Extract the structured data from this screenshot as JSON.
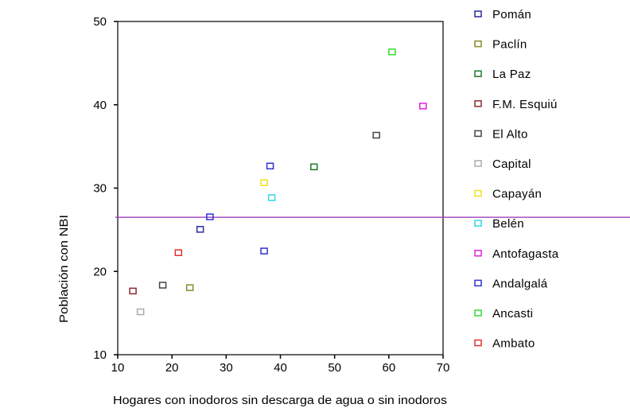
{
  "chart_data": {
    "type": "scatter",
    "title": "",
    "xlabel": "Hogares con inodoros sin descarga de agua o sin inodoros",
    "ylabel": "Población con NBI",
    "xlim": [
      10,
      70
    ],
    "ylim": [
      10,
      50
    ],
    "xticks": [
      "10",
      "20",
      "30",
      "40",
      "50",
      "60",
      "70"
    ],
    "yticks": [
      "10",
      "20",
      "30",
      "40",
      "50"
    ],
    "grid": false,
    "reference_line": {
      "y": 26.5,
      "color": "#a040c0"
    },
    "legend_position": "right",
    "series": [
      {
        "name": "Pomán",
        "color": "#2a2a9a",
        "points": [
          [
            25.2,
            25.0
          ]
        ]
      },
      {
        "name": "Paclín",
        "color": "#8a8a2a",
        "points": [
          [
            23.3,
            18.0
          ]
        ]
      },
      {
        "name": "La Paz",
        "color": "#1f7a2a",
        "points": [
          [
            46.2,
            32.5
          ]
        ]
      },
      {
        "name": "F.M. Esquiú",
        "color": "#8a2a2a",
        "points": [
          [
            12.8,
            17.6
          ]
        ]
      },
      {
        "name": "El Alto",
        "color": "#444444",
        "points": [
          [
            18.3,
            18.3
          ],
          [
            57.7,
            36.3
          ]
        ]
      },
      {
        "name": "Capital",
        "color": "#aaaaaa",
        "points": [
          [
            14.2,
            15.1
          ]
        ]
      },
      {
        "name": "Capayán",
        "color": "#f0e020",
        "points": [
          [
            37.0,
            30.6
          ]
        ]
      },
      {
        "name": "Belén",
        "color": "#30d8e0",
        "points": [
          [
            38.4,
            28.8
          ]
        ]
      },
      {
        "name": "Antofagasta",
        "color": "#e020e0",
        "points": [
          [
            66.3,
            39.8
          ]
        ]
      },
      {
        "name": "Andalgalá",
        "color": "#3030d0",
        "points": [
          [
            27.0,
            26.5
          ],
          [
            37.0,
            22.4
          ],
          [
            38.1,
            32.6
          ]
        ]
      },
      {
        "name": "Ancasti",
        "color": "#30e030",
        "points": [
          [
            60.6,
            46.3
          ]
        ]
      },
      {
        "name": "Ambato",
        "color": "#e03030",
        "points": [
          [
            21.2,
            22.2
          ]
        ]
      }
    ]
  }
}
